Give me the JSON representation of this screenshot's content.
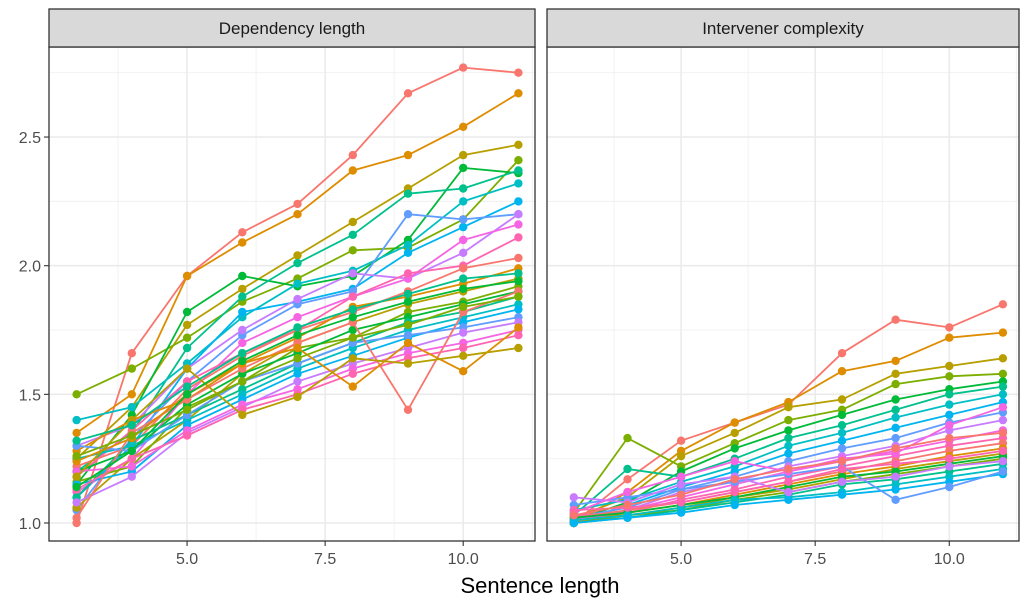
{
  "chart_data": {
    "type": "line",
    "xlabel": "Sentence length",
    "ylabel": "",
    "xlim": [
      2.5,
      11.3
    ],
    "ylim": [
      0.93,
      2.85
    ],
    "x_ticks": [
      5.0,
      7.5,
      10.0
    ],
    "x_tick_labels": [
      "5.0",
      "7.5",
      "10.0"
    ],
    "y_ticks": [
      1.0,
      1.5,
      2.0,
      2.5
    ],
    "y_tick_labels": [
      "1.0",
      "1.5",
      "2.0",
      "2.5"
    ],
    "grid": true,
    "legend": "none",
    "x": [
      3,
      4,
      5,
      6,
      7,
      8,
      9,
      10,
      11
    ],
    "palette": [
      "#F8766D",
      "#DE8C00",
      "#B79F00",
      "#7CAE00",
      "#00BA38",
      "#00C08B",
      "#00BFC4",
      "#00B4F0",
      "#619CFF",
      "#C77CFF",
      "#F564E3",
      "#FF64B0"
    ],
    "panels": [
      {
        "strip_label": "Dependency length",
        "series": [
          {
            "values": [
              1.0,
              1.66,
              1.96,
              2.13,
              2.24,
              2.43,
              2.67,
              2.77,
              2.75
            ]
          },
          {
            "values": [
              1.35,
              1.5,
              1.96,
              2.09,
              2.2,
              2.37,
              2.43,
              2.54,
              2.67
            ]
          },
          {
            "values": [
              1.25,
              1.45,
              1.77,
              1.91,
              2.04,
              2.17,
              2.3,
              2.43,
              2.47
            ]
          },
          {
            "values": [
              1.5,
              1.6,
              1.72,
              1.86,
              1.95,
              2.06,
              2.07,
              2.18,
              2.41
            ]
          },
          {
            "values": [
              1.15,
              1.42,
              1.82,
              1.96,
              1.92,
              1.96,
              2.1,
              2.38,
              2.36
            ]
          },
          {
            "values": [
              1.2,
              1.35,
              1.68,
              1.88,
              2.01,
              2.12,
              2.28,
              2.3,
              2.37
            ]
          },
          {
            "values": [
              1.4,
              1.45,
              1.62,
              1.8,
              1.93,
              1.98,
              2.08,
              2.25,
              2.32
            ]
          },
          {
            "values": [
              1.1,
              1.3,
              1.6,
              1.82,
              1.86,
              1.91,
              2.05,
              2.15,
              2.25
            ]
          },
          {
            "values": [
              1.05,
              1.33,
              1.55,
              1.73,
              1.85,
              1.9,
              2.2,
              2.18,
              2.2
            ]
          },
          {
            "values": [
              1.3,
              1.38,
              1.6,
              1.75,
              1.87,
              1.97,
              1.95,
              2.05,
              2.2
            ]
          },
          {
            "values": [
              1.12,
              1.25,
              1.5,
              1.7,
              1.8,
              1.88,
              1.95,
              2.1,
              2.16
            ]
          },
          {
            "values": [
              1.18,
              1.36,
              1.55,
              1.66,
              1.75,
              1.88,
              1.97,
              2.0,
              2.11
            ]
          },
          {
            "values": [
              1.22,
              1.3,
              1.52,
              1.65,
              1.75,
              1.82,
              1.9,
              1.99,
              2.03
            ]
          },
          {
            "values": [
              1.28,
              1.4,
              1.48,
              1.62,
              1.72,
              1.84,
              1.88,
              1.93,
              1.99
            ]
          },
          {
            "values": [
              1.06,
              1.25,
              1.4,
              1.58,
              1.7,
              1.78,
              1.85,
              1.9,
              1.95
            ]
          },
          {
            "values": [
              1.16,
              1.22,
              1.45,
              1.55,
              1.68,
              1.72,
              1.82,
              1.86,
              1.92
            ]
          },
          {
            "values": [
              1.2,
              1.28,
              1.46,
              1.58,
              1.66,
              1.75,
              1.8,
              1.85,
              1.9
            ]
          },
          {
            "values": [
              1.1,
              1.32,
              1.42,
              1.52,
              1.62,
              1.7,
              1.78,
              1.82,
              1.88
            ]
          },
          {
            "values": [
              1.25,
              1.3,
              1.4,
              1.5,
              1.6,
              1.68,
              1.75,
              1.8,
              1.85
            ]
          },
          {
            "values": [
              1.15,
              1.2,
              1.38,
              1.48,
              1.58,
              1.65,
              1.72,
              1.78,
              1.83
            ]
          },
          {
            "values": [
              1.3,
              1.28,
              1.42,
              1.55,
              1.62,
              1.7,
              1.73,
              1.76,
              1.8
            ]
          },
          {
            "values": [
              1.08,
              1.18,
              1.35,
              1.45,
              1.55,
              1.62,
              1.68,
              1.74,
              1.78
            ]
          },
          {
            "values": [
              1.2,
              1.22,
              1.36,
              1.46,
              1.52,
              1.6,
              1.66,
              1.7,
              1.75
            ]
          },
          {
            "values": [
              1.13,
              1.25,
              1.34,
              1.44,
              1.5,
              1.58,
              1.64,
              1.68,
              1.73
            ]
          },
          {
            "values": [
              1.02,
              1.35,
              1.48,
              1.6,
              1.7,
              1.78,
              1.44,
              1.82,
              1.9
            ]
          },
          {
            "values": [
              1.24,
              1.33,
              1.5,
              1.62,
              1.68,
              1.53,
              1.7,
              1.59,
              1.76
            ]
          },
          {
            "values": [
              1.18,
              1.4,
              1.6,
              1.42,
              1.49,
              1.64,
              1.62,
              1.65,
              1.68
            ]
          },
          {
            "values": [
              1.26,
              1.34,
              1.44,
              1.55,
              1.64,
              1.72,
              1.77,
              1.84,
              1.88
            ]
          },
          {
            "values": [
              1.14,
              1.28,
              1.5,
              1.63,
              1.73,
              1.8,
              1.86,
              1.91,
              1.94
            ]
          },
          {
            "values": [
              1.32,
              1.38,
              1.53,
              1.66,
              1.76,
              1.83,
              1.89,
              1.95,
              1.97
            ]
          }
        ]
      },
      {
        "strip_label": "Intervener complexity",
        "series": [
          {
            "values": [
              1.0,
              1.17,
              1.32,
              1.39,
              1.46,
              1.66,
              1.79,
              1.76,
              1.85
            ]
          },
          {
            "values": [
              1.0,
              1.12,
              1.28,
              1.39,
              1.47,
              1.59,
              1.63,
              1.72,
              1.74
            ]
          },
          {
            "values": [
              1.02,
              1.1,
              1.26,
              1.35,
              1.45,
              1.48,
              1.58,
              1.61,
              1.64
            ]
          },
          {
            "values": [
              1.04,
              1.33,
              1.22,
              1.31,
              1.4,
              1.44,
              1.54,
              1.57,
              1.58
            ]
          },
          {
            "values": [
              1.01,
              1.08,
              1.2,
              1.29,
              1.36,
              1.42,
              1.48,
              1.52,
              1.55
            ]
          },
          {
            "values": [
              1.03,
              1.21,
              1.18,
              1.25,
              1.33,
              1.38,
              1.44,
              1.5,
              1.53
            ]
          },
          {
            "values": [
              1.05,
              1.09,
              1.16,
              1.22,
              1.3,
              1.35,
              1.41,
              1.46,
              1.5
            ]
          },
          {
            "values": [
              1.0,
              1.07,
              1.14,
              1.2,
              1.27,
              1.32,
              1.37,
              1.42,
              1.47
            ]
          },
          {
            "values": [
              1.02,
              1.06,
              1.13,
              1.18,
              1.24,
              1.29,
              1.33,
              1.39,
              1.43
            ]
          },
          {
            "values": [
              1.01,
              1.05,
              1.12,
              1.16,
              1.22,
              1.26,
              1.3,
              1.36,
              1.4
            ]
          },
          {
            "values": [
              1.0,
              1.05,
              1.1,
              1.15,
              1.2,
              1.24,
              1.28,
              1.32,
              1.36
            ]
          },
          {
            "values": [
              1.03,
              1.04,
              1.09,
              1.13,
              1.18,
              1.22,
              1.26,
              1.3,
              1.33
            ]
          },
          {
            "values": [
              1.02,
              1.05,
              1.08,
              1.12,
              1.16,
              1.2,
              1.24,
              1.28,
              1.31
            ]
          },
          {
            "values": [
              1.0,
              1.04,
              1.07,
              1.11,
              1.15,
              1.19,
              1.22,
              1.26,
              1.29
            ]
          },
          {
            "values": [
              1.01,
              1.03,
              1.06,
              1.1,
              1.13,
              1.17,
              1.21,
              1.24,
              1.27
            ]
          },
          {
            "values": [
              1.0,
              1.03,
              1.05,
              1.09,
              1.12,
              1.16,
              1.19,
              1.22,
              1.25
            ]
          },
          {
            "values": [
              1.02,
              1.04,
              1.07,
              1.1,
              1.14,
              1.18,
              1.2,
              1.23,
              1.26
            ]
          },
          {
            "values": [
              1.0,
              1.02,
              1.05,
              1.08,
              1.11,
              1.15,
              1.17,
              1.2,
              1.23
            ]
          },
          {
            "values": [
              1.01,
              1.03,
              1.06,
              1.09,
              1.1,
              1.12,
              1.15,
              1.18,
              1.21
            ]
          },
          {
            "values": [
              1.0,
              1.02,
              1.04,
              1.07,
              1.09,
              1.11,
              1.13,
              1.16,
              1.19
            ]
          },
          {
            "values": [
              1.07,
              1.1,
              1.13,
              1.16,
              1.19,
              1.22,
              1.09,
              1.14,
              1.2
            ]
          },
          {
            "values": [
              1.1,
              1.08,
              1.15,
              1.18,
              1.12,
              1.16,
              1.18,
              1.22,
              1.24
            ]
          },
          {
            "values": [
              1.04,
              1.12,
              1.18,
              1.24,
              1.2,
              1.25,
              1.27,
              1.38,
              1.45
            ]
          },
          {
            "values": [
              1.05,
              1.06,
              1.08,
              1.12,
              1.16,
              1.21,
              1.23,
              1.25,
              1.28
            ]
          },
          {
            "values": [
              1.03,
              1.07,
              1.11,
              1.17,
              1.21,
              1.24,
              1.29,
              1.33,
              1.35
            ]
          }
        ]
      }
    ]
  }
}
